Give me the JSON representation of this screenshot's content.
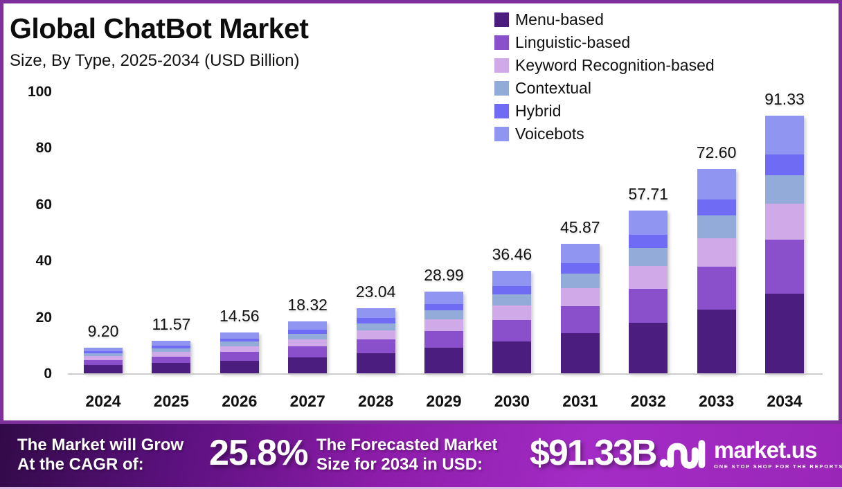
{
  "title": "Global ChatBot Market",
  "subtitle": "Size, By Type, 2025-2034 (USD Billion)",
  "chart_data": {
    "type": "stacked-bar",
    "categories": [
      "2024",
      "2025",
      "2026",
      "2027",
      "2028",
      "2029",
      "2030",
      "2031",
      "2032",
      "2033",
      "2034"
    ],
    "totals": [
      9.2,
      11.57,
      14.56,
      18.32,
      23.04,
      28.99,
      36.46,
      45.87,
      57.71,
      72.6,
      91.33
    ],
    "series": [
      {
        "name": "Menu-based",
        "color": "#4a1d7e",
        "values": [
          2.85,
          3.59,
          4.51,
          5.68,
          7.14,
          8.99,
          11.3,
          14.22,
          17.89,
          22.51,
          28.31
        ]
      },
      {
        "name": "Linguistic-based",
        "color": "#8a50cc",
        "values": [
          1.93,
          2.43,
          3.06,
          3.85,
          4.84,
          6.09,
          7.66,
          9.63,
          12.12,
          15.25,
          19.18
        ]
      },
      {
        "name": "Keyword Recognition-based",
        "color": "#d0a9e8",
        "values": [
          1.29,
          1.62,
          2.04,
          2.56,
          3.23,
          4.06,
          5.1,
          6.42,
          8.08,
          10.16,
          12.79
        ]
      },
      {
        "name": "Contextual",
        "color": "#92abd8",
        "values": [
          1.01,
          1.27,
          1.6,
          2.02,
          2.53,
          3.19,
          4.01,
          5.05,
          6.35,
          7.99,
          10.05
        ]
      },
      {
        "name": "Hybrid",
        "color": "#6f6bf5",
        "values": [
          0.74,
          0.93,
          1.16,
          1.47,
          1.84,
          2.32,
          2.92,
          3.67,
          4.62,
          5.81,
          7.31
        ]
      },
      {
        "name": "Voicebots",
        "color": "#9095f2",
        "values": [
          1.38,
          1.74,
          2.18,
          2.75,
          3.46,
          4.35,
          5.47,
          6.88,
          8.66,
          10.89,
          13.7
        ]
      }
    ],
    "ylim": [
      0,
      100
    ],
    "yticks": [
      0,
      20,
      40,
      60,
      80,
      100
    ],
    "legend_position": "top-right",
    "grid": false
  },
  "banner": {
    "cagr_label_line1": "The Market will Grow",
    "cagr_label_line2": "At the CAGR of:",
    "cagr_value": "25.8%",
    "forecast_label_line1": "The Forecasted Market",
    "forecast_label_line2": "Size for 2034 in USD:",
    "forecast_value": "$91.33B",
    "brand": "market.us",
    "brand_tagline": "ONE STOP SHOP FOR THE REPORTS"
  },
  "colors": {
    "frame_border": "#7e2f9c",
    "banner_gradient_start": "#320a48",
    "banner_gradient_end": "#9a26b8"
  }
}
